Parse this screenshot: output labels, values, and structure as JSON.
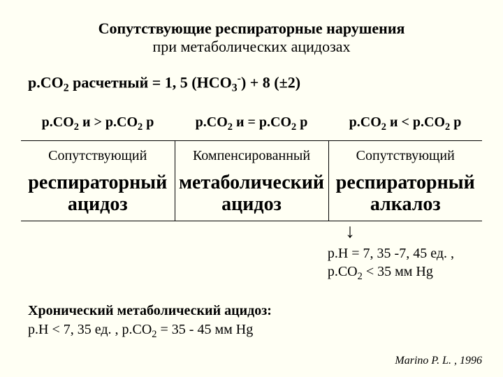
{
  "title": "Сопутствующие респираторные нарушения",
  "subtitle": "при метаболических ацидозах",
  "formula": {
    "prefix": "р.СО",
    "sub1": "2",
    "calc": " расчетный",
    "mid1": " = 1, 5 (НСО",
    "sub2": "3",
    "sup": "-",
    "mid2": ") + 8 (",
    "pm": "±",
    "tail": "2)"
  },
  "table": {
    "head": {
      "c1": {
        "p": "р.СО",
        "s": "2",
        "t": " и > р.СО",
        "s2": "2",
        "r": " р"
      },
      "c2": {
        "p": "р.СО",
        "s": "2",
        "t": " и = р.СО",
        "s2": "2",
        "r": " р"
      },
      "c3": {
        "p": "р.СО",
        "s": "2",
        "t": " и < р.СО",
        "s2": "2",
        "r": " р"
      }
    },
    "mid": {
      "c1": "Сопутствующий",
      "c2": "Компенсированный",
      "c3": "Сопутствующий"
    },
    "big": {
      "c1a": "респираторный",
      "c1b": "ацидоз",
      "c2a": "метаболический",
      "c2b": "ацидоз",
      "c3a": "респираторный",
      "c3b": "алкалоз"
    }
  },
  "annot": {
    "l1a": "р.Н = 7, 35 -7, 45 ед. ,",
    "l2p": "р.СО",
    "l2s": "2",
    "l2t": " < 35 мм Нg"
  },
  "chronic": {
    "h": "Хронический метаболический ацидоз:",
    "l2a": "р.Н < 7, 35 ед. ,  р.СО",
    "l2s": "2",
    "l2t": " = 35 - 45 мм Нg"
  },
  "cite": "Marino P. L. , 1996"
}
